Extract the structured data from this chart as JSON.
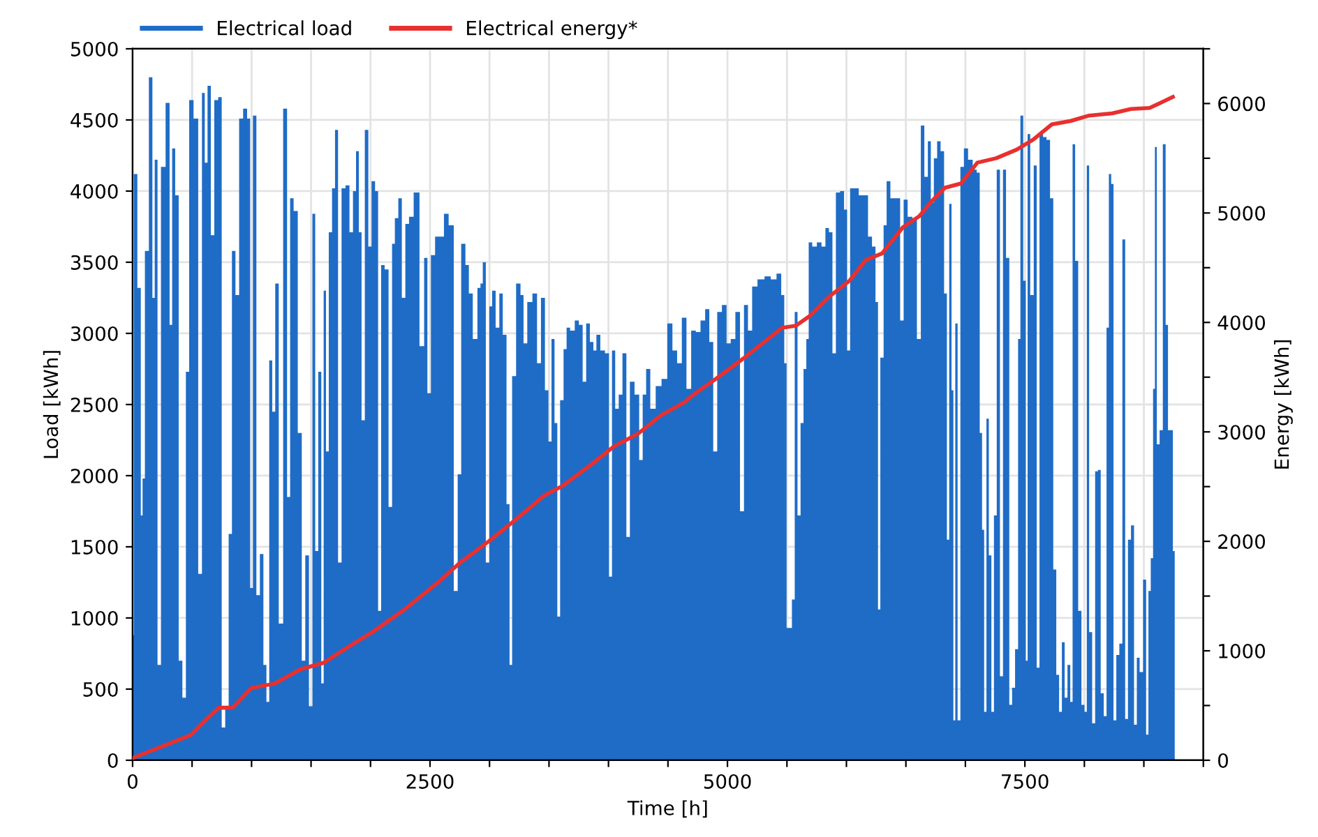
{
  "chart_data": {
    "type": "area",
    "xlabel": "Time [h]",
    "ylabel": "Load [kWh]",
    "y2label": "Energy [kWh]",
    "xlim": [
      0,
      9000
    ],
    "xticks": [
      0,
      {
        "value": 500,
        "label": null
      },
      {
        "value": 1000,
        "label": null
      },
      {
        "value": 1500,
        "label": null
      },
      {
        "value": 2000,
        "label": null
      },
      2500,
      {
        "value": 3000,
        "label": null
      },
      {
        "value": 3500,
        "label": null
      },
      {
        "value": 4000,
        "label": null
      },
      {
        "value": 4500,
        "label": null
      },
      5000,
      {
        "value": 5500,
        "label": null
      },
      {
        "value": 6000,
        "label": null
      },
      {
        "value": 6500,
        "label": null
      },
      {
        "value": 7000,
        "label": null
      },
      7500,
      {
        "value": 8000,
        "label": null
      },
      {
        "value": 8500,
        "label": null
      },
      {
        "value": 9000,
        "label": null
      }
    ],
    "ylim": [
      0,
      5000
    ],
    "yticks": [
      0,
      500,
      1000,
      1500,
      2000,
      2500,
      3000,
      3500,
      4000,
      4500,
      5000
    ],
    "y2lim": [
      0,
      6500
    ],
    "y2ticks": [
      0,
      {
        "value": 500,
        "label": null
      },
      1000,
      {
        "value": 1500,
        "label": null
      },
      2000,
      {
        "value": 2500,
        "label": null
      },
      3000,
      {
        "value": 3500,
        "label": null
      },
      4000,
      {
        "value": 4500,
        "label": null
      },
      5000,
      {
        "value": 5500,
        "label": null
      },
      6000,
      {
        "value": 6500,
        "label": null
      }
    ],
    "grid": true,
    "legend": "top left",
    "marker": "none",
    "series": [
      {
        "name": "Electrical load",
        "color": "#1f6cc7",
        "x": [
          0,
          20,
          60,
          78,
          90,
          117,
          157,
          176,
          196,
          223,
          254,
          301,
          321,
          344,
          372,
          403,
          434,
          462,
          489,
          536,
          567,
          599,
          614,
          646,
          669,
          704,
          735,
          763,
          794,
          821,
          849,
          880,
          911,
          947,
          978,
          998,
          1025,
          1056,
          1084,
          1115,
          1135,
          1162,
          1185,
          1213,
          1244,
          1287,
          1310,
          1338,
          1369,
          1408,
          1436,
          1467,
          1498,
          1525,
          1545,
          1576,
          1596,
          1616,
          1635,
          1663,
          1690,
          1713,
          1741,
          1772,
          1807,
          1839,
          1866,
          1890,
          1913,
          1936,
          1968,
          1995,
          2022,
          2054,
          2073,
          2105,
          2132,
          2171,
          2191,
          2218,
          2249,
          2277,
          2308,
          2339,
          2386,
          2437,
          2464,
          2492,
          2523,
          2562,
          2601,
          2633,
          2680,
          2719,
          2746,
          2778,
          2817,
          2836,
          2883,
          2914,
          2934,
          2953,
          2985,
          3012,
          3032,
          3071,
          3094,
          3129,
          3157,
          3180,
          3200,
          3247,
          3274,
          3298,
          3337,
          3384,
          3415,
          3450,
          3482,
          3509,
          3533,
          3560,
          3580,
          3607,
          3638,
          3658,
          3697,
          3736,
          3767,
          3799,
          3826,
          3861,
          3885,
          3912,
          3951,
          3990,
          4018,
          4041,
          4072,
          4100,
          4135,
          4166,
          4194,
          4244,
          4272,
          4303,
          4330,
          4373,
          4421,
          4471,
          4518,
          4557,
          4597,
          4636,
          4675,
          4715,
          4754,
          4793,
          4832,
          4863,
          4898,
          4930,
          4977,
          5008,
          5047,
          5086,
          5125,
          5153,
          5192,
          5223,
          5282,
          5341,
          5387,
          5438,
          5466,
          5489,
          5505,
          5528,
          5556,
          5575,
          5603,
          5626,
          5653,
          5673,
          5693,
          5732,
          5771,
          5810,
          5837,
          5869,
          5896,
          5927,
          5966,
          5994,
          6017,
          6045,
          6084,
          6123,
          6162,
          6201,
          6229,
          6260,
          6271,
          6299,
          6326,
          6350,
          6389,
          6436,
          6467,
          6495,
          6534,
          6573,
          6612,
          6639,
          6671,
          6698,
          6721,
          6749,
          6776,
          6807,
          6835,
          6854,
          6874,
          6893,
          6905,
          6925,
          6944,
          6972,
          7003,
          7042,
          7081,
          7109,
          7132,
          7148,
          7167,
          7187,
          7207,
          7230,
          7250,
          7277,
          7304,
          7328,
          7355,
          7383,
          7402,
          7433,
          7453,
          7472,
          7500,
          7515,
          7531,
          7559,
          7590,
          7609,
          7637,
          7668,
          7696,
          7727,
          7750,
          7778,
          7797,
          7825,
          7844,
          7872,
          7891,
          7911,
          7934,
          7962,
          7989,
          8013,
          8028,
          8052,
          8079,
          8102,
          8126,
          8149,
          8177,
          8196,
          8216,
          8235,
          8255,
          8282,
          8306,
          8333,
          8353,
          8380,
          8404,
          8431,
          8451,
          8478,
          8509,
          8529,
          8548,
          8568,
          8587,
          8599,
          8619,
          8646,
          8673,
          8693,
          8713,
          8736,
          8752,
          8767
        ],
        "values": [
          880,
          4120,
          3320,
          1720,
          1980,
          3580,
          4800,
          3250,
          4220,
          670,
          4170,
          4620,
          3060,
          4300,
          3970,
          700,
          440,
          2730,
          4640,
          4510,
          1310,
          4690,
          4200,
          4740,
          3690,
          4640,
          4660,
          230,
          380,
          1590,
          3580,
          3270,
          4510,
          4580,
          4510,
          1210,
          4530,
          1160,
          1450,
          670,
          410,
          2810,
          2450,
          3350,
          960,
          4580,
          1850,
          3950,
          3860,
          2300,
          700,
          1440,
          380,
          3840,
          1470,
          2730,
          540,
          3300,
          2170,
          3710,
          4020,
          4430,
          1390,
          4020,
          4040,
          3710,
          4000,
          4280,
          3710,
          2390,
          4430,
          3610,
          4070,
          4000,
          1050,
          3480,
          3450,
          1780,
          3630,
          3810,
          3950,
          3250,
          3770,
          3820,
          3990,
          2910,
          3530,
          2580,
          3550,
          3680,
          3680,
          3840,
          3760,
          1190,
          2010,
          3630,
          3480,
          3280,
          2960,
          3320,
          3350,
          3500,
          1390,
          3190,
          3300,
          3040,
          3280,
          2990,
          1800,
          670,
          2700,
          3350,
          3270,
          2930,
          3220,
          3280,
          2790,
          3250,
          2600,
          2240,
          2960,
          2370,
          1010,
          2530,
          2890,
          3040,
          3020,
          3090,
          3060,
          2660,
          3070,
          2940,
          2880,
          2990,
          2880,
          2860,
          1290,
          2880,
          2470,
          2570,
          2860,
          1570,
          2660,
          2570,
          2110,
          2570,
          2750,
          2470,
          2630,
          2680,
          3070,
          2880,
          2790,
          3110,
          2610,
          3020,
          3010,
          3090,
          3170,
          2940,
          2170,
          3150,
          3200,
          2930,
          2960,
          3150,
          1750,
          3200,
          3020,
          3330,
          3380,
          3400,
          3380,
          3420,
          3270,
          2790,
          930,
          930,
          1130,
          3150,
          1720,
          2370,
          2750,
          2960,
          3640,
          3610,
          3640,
          3610,
          3740,
          3710,
          2860,
          3990,
          4000,
          3870,
          2880,
          4020,
          4020,
          3970,
          3970,
          3680,
          3610,
          3220,
          1060,
          2830,
          3760,
          4070,
          3950,
          3950,
          3090,
          3940,
          3820,
          3810,
          2960,
          4460,
          4100,
          4350,
          3920,
          4230,
          4350,
          4280,
          3280,
          1550,
          3910,
          2600,
          280,
          3070,
          280,
          4170,
          4300,
          4220,
          4150,
          4130,
          2300,
          1620,
          340,
          2400,
          1440,
          340,
          1720,
          4150,
          590,
          4150,
          3530,
          390,
          510,
          780,
          2960,
          4530,
          3370,
          700,
          4400,
          3270,
          4180,
          650,
          4400,
          4380,
          4360,
          3950,
          1340,
          600,
          340,
          830,
          440,
          670,
          410,
          4330,
          3510,
          1050,
          390,
          340,
          4180,
          900,
          260,
          2030,
          2040,
          470,
          310,
          3040,
          4120,
          4050,
          280,
          740,
          820,
          3660,
          290,
          1550,
          1650,
          250,
          720,
          620,
          1270,
          180,
          1190,
          1420,
          2610,
          4310,
          2220,
          2320,
          4330,
          3060,
          2320,
          2320,
          1470,
          0
        ]
      },
      {
        "name": "Electrical energy*",
        "type": "line",
        "axis": "y2",
        "color": "#e8302f",
        "x": [
          0,
          489,
          626,
          724,
          841,
          998,
          1193,
          1408,
          1604,
          1819,
          2015,
          2288,
          2562,
          2758,
          2993,
          3188,
          3462,
          3619,
          3853,
          4049,
          4244,
          4440,
          4636,
          4715,
          4910,
          5145,
          5458,
          5575,
          5693,
          5849,
          6025,
          6162,
          6299,
          6475,
          6612,
          6710,
          6827,
          6964,
          7101,
          7258,
          7433,
          7570,
          7727,
          7883,
          8040,
          8235,
          8392,
          8548,
          8627,
          8744
        ],
        "values": [
          20,
          230,
          380,
          480,
          480,
          660,
          700,
          830,
          890,
          1040,
          1170,
          1380,
          1620,
          1810,
          2000,
          2170,
          2420,
          2510,
          2700,
          2870,
          2980,
          3150,
          3270,
          3340,
          3490,
          3680,
          3950,
          3970,
          4060,
          4230,
          4380,
          4570,
          4630,
          4870,
          4970,
          5100,
          5230,
          5270,
          5460,
          5500,
          5580,
          5670,
          5810,
          5840,
          5890,
          5910,
          5950,
          5960,
          6000,
          6060
        ]
      }
    ]
  }
}
